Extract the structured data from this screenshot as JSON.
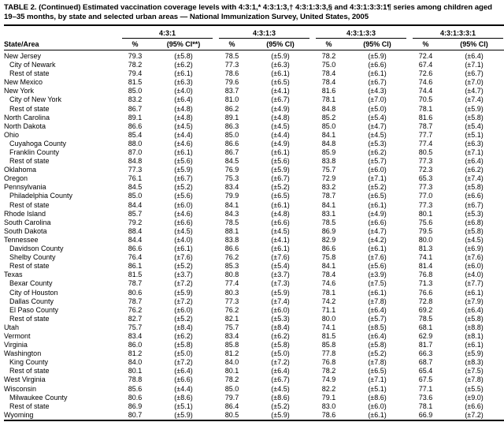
{
  "title": "TABLE 2. (Continued) Estimated vaccination coverage levels with 4:3:1,* 4:3:1:3,† 4:3:1:3:3,§ and 4:3:1:3:3:1¶ series among children aged 19–35 months, by state and selected urban areas — National Immunization Survey, United States, 2005",
  "header": {
    "state_col": "State/Area",
    "groups": [
      {
        "label": "4:3:1",
        "pct": "%",
        "ci": "(95% CI**)"
      },
      {
        "label": "4:3:1:3",
        "pct": "%",
        "ci": "(95% CI)"
      },
      {
        "label": "4:3:1:3:3",
        "pct": "%",
        "ci": "(95% CI)"
      },
      {
        "label": "4:3:1:3:3:1",
        "pct": "%",
        "ci": "(95% CI)"
      }
    ]
  },
  "rows": [
    {
      "area": "New Jersey",
      "indent": false,
      "values": [
        "79.3",
        "(±5.8)",
        "78.5",
        "(±5.9)",
        "78.2",
        "(±5.9)",
        "72.4",
        "(±6.4)"
      ]
    },
    {
      "area": "City of Newark",
      "indent": true,
      "values": [
        "78.2",
        "(±6.2)",
        "77.3",
        "(±6.3)",
        "75.0",
        "(±6.6)",
        "67.4",
        "(±7.1)"
      ]
    },
    {
      "area": "Rest of state",
      "indent": true,
      "values": [
        "79.4",
        "(±6.1)",
        "78.6",
        "(±6.1)",
        "78.4",
        "(±6.1)",
        "72.6",
        "(±6.7)"
      ]
    },
    {
      "area": "New Mexico",
      "indent": false,
      "values": [
        "81.5",
        "(±6.3)",
        "79.6",
        "(±6.5)",
        "78.4",
        "(±6.7)",
        "74.6",
        "(±7.0)"
      ]
    },
    {
      "area": "New York",
      "indent": false,
      "values": [
        "85.0",
        "(±4.0)",
        "83.7",
        "(±4.1)",
        "81.6",
        "(±4.3)",
        "74.4",
        "(±4.7)"
      ]
    },
    {
      "area": "City of New York",
      "indent": true,
      "values": [
        "83.2",
        "(±6.4)",
        "81.0",
        "(±6.7)",
        "78.1",
        "(±7.0)",
        "70.5",
        "(±7.4)"
      ]
    },
    {
      "area": "Rest of state",
      "indent": true,
      "values": [
        "86.7",
        "(±4.8)",
        "86.2",
        "(±4.9)",
        "84.8",
        "(±5.0)",
        "78.1",
        "(±5.9)"
      ]
    },
    {
      "area": "North Carolina",
      "indent": false,
      "values": [
        "89.1",
        "(±4.8)",
        "89.1",
        "(±4.8)",
        "85.2",
        "(±5.4)",
        "81.6",
        "(±5.8)"
      ]
    },
    {
      "area": "North Dakota",
      "indent": false,
      "values": [
        "86.6",
        "(±4.5)",
        "86.3",
        "(±4.5)",
        "85.0",
        "(±4.7)",
        "78.7",
        "(±5.4)"
      ]
    },
    {
      "area": "Ohio",
      "indent": false,
      "values": [
        "85.4",
        "(±4.4)",
        "85.0",
        "(±4.4)",
        "84.1",
        "(±4.5)",
        "77.7",
        "(±5.1)"
      ]
    },
    {
      "area": "Cuyahoga County",
      "indent": true,
      "values": [
        "88.0",
        "(±4.6)",
        "86.6",
        "(±4.9)",
        "84.8",
        "(±5.3)",
        "77.4",
        "(±6.3)"
      ]
    },
    {
      "area": "Franklin County",
      "indent": true,
      "values": [
        "87.0",
        "(±6.1)",
        "86.7",
        "(±6.1)",
        "85.9",
        "(±6.2)",
        "80.5",
        "(±7.1)"
      ]
    },
    {
      "area": "Rest of state",
      "indent": true,
      "values": [
        "84.8",
        "(±5.6)",
        "84.5",
        "(±5.6)",
        "83.8",
        "(±5.7)",
        "77.3",
        "(±6.4)"
      ]
    },
    {
      "area": "Oklahoma",
      "indent": false,
      "values": [
        "77.3",
        "(±5.9)",
        "76.9",
        "(±5.9)",
        "75.7",
        "(±6.0)",
        "72.3",
        "(±6.2)"
      ]
    },
    {
      "area": "Oregon",
      "indent": false,
      "values": [
        "76.1",
        "(±6.7)",
        "75.3",
        "(±6.7)",
        "72.9",
        "(±7.1)",
        "65.3",
        "(±7.4)"
      ]
    },
    {
      "area": "Pennsylvania",
      "indent": false,
      "values": [
        "84.5",
        "(±5.2)",
        "83.4",
        "(±5.2)",
        "83.2",
        "(±5.2)",
        "77.3",
        "(±5.8)"
      ]
    },
    {
      "area": "Philadelphia County",
      "indent": true,
      "values": [
        "85.0",
        "(±5.6)",
        "79.9",
        "(±6.5)",
        "78.7",
        "(±6.5)",
        "77.0",
        "(±6.6)"
      ]
    },
    {
      "area": "Rest of state",
      "indent": true,
      "values": [
        "84.4",
        "(±6.0)",
        "84.1",
        "(±6.1)",
        "84.1",
        "(±6.1)",
        "77.3",
        "(±6.7)"
      ]
    },
    {
      "area": "Rhode Island",
      "indent": false,
      "values": [
        "85.7",
        "(±4.6)",
        "84.3",
        "(±4.8)",
        "83.1",
        "(±4.9)",
        "80.1",
        "(±5.3)"
      ]
    },
    {
      "area": "South Carolina",
      "indent": false,
      "values": [
        "79.2",
        "(±6.6)",
        "78.5",
        "(±6.6)",
        "78.5",
        "(±6.6)",
        "75.6",
        "(±6.8)"
      ]
    },
    {
      "area": "South Dakota",
      "indent": false,
      "values": [
        "88.4",
        "(±4.5)",
        "88.1",
        "(±4.5)",
        "86.9",
        "(±4.7)",
        "79.5",
        "(±5.8)"
      ]
    },
    {
      "area": "Tennessee",
      "indent": false,
      "values": [
        "84.4",
        "(±4.0)",
        "83.8",
        "(±4.1)",
        "82.9",
        "(±4.2)",
        "80.0",
        "(±4.5)"
      ]
    },
    {
      "area": "Davidson County",
      "indent": true,
      "values": [
        "86.6",
        "(±6.1)",
        "86.6",
        "(±6.1)",
        "86.6",
        "(±6.1)",
        "81.3",
        "(±6.9)"
      ]
    },
    {
      "area": "Shelby County",
      "indent": true,
      "values": [
        "76.4",
        "(±7.6)",
        "76.2",
        "(±7.6)",
        "75.8",
        "(±7.6)",
        "74.1",
        "(±7.6)"
      ]
    },
    {
      "area": "Rest of state",
      "indent": true,
      "values": [
        "86.1",
        "(±5.2)",
        "85.3",
        "(±5.4)",
        "84.1",
        "(±5.6)",
        "81.4",
        "(±6.0)"
      ]
    },
    {
      "area": "Texas",
      "indent": false,
      "values": [
        "81.5",
        "(±3.7)",
        "80.8",
        "(±3.7)",
        "78.4",
        "(±3.9)",
        "76.8",
        "(±4.0)"
      ]
    },
    {
      "area": "Bexar County",
      "indent": true,
      "values": [
        "78.7",
        "(±7.2)",
        "77.4",
        "(±7.3)",
        "74.6",
        "(±7.5)",
        "71.3",
        "(±7.7)"
      ]
    },
    {
      "area": "City of Houston",
      "indent": true,
      "values": [
        "80.6",
        "(±5.9)",
        "80.3",
        "(±5.9)",
        "78.1",
        "(±6.1)",
        "76.6",
        "(±6.1)"
      ]
    },
    {
      "area": "Dallas County",
      "indent": true,
      "values": [
        "78.7",
        "(±7.2)",
        "77.3",
        "(±7.4)",
        "74.2",
        "(±7.8)",
        "72.8",
        "(±7.9)"
      ]
    },
    {
      "area": "El Paso County",
      "indent": true,
      "values": [
        "76.2",
        "(±6.0)",
        "76.2",
        "(±6.0)",
        "71.1",
        "(±6.4)",
        "69.2",
        "(±6.4)"
      ]
    },
    {
      "area": "Rest of state",
      "indent": true,
      "values": [
        "82.7",
        "(±5.2)",
        "82.1",
        "(±5.3)",
        "80.0",
        "(±5.7)",
        "78.5",
        "(±5.8)"
      ]
    },
    {
      "area": "Utah",
      "indent": false,
      "values": [
        "75.7",
        "(±8.4)",
        "75.7",
        "(±8.4)",
        "74.1",
        "(±8.5)",
        "68.1",
        "(±8.8)"
      ]
    },
    {
      "area": "Vermont",
      "indent": false,
      "values": [
        "83.4",
        "(±6.2)",
        "83.4",
        "(±6.2)",
        "81.5",
        "(±6.4)",
        "62.9",
        "(±8.1)"
      ]
    },
    {
      "area": "Virginia",
      "indent": false,
      "values": [
        "86.0",
        "(±5.8)",
        "85.8",
        "(±5.8)",
        "85.8",
        "(±5.8)",
        "81.7",
        "(±6.1)"
      ]
    },
    {
      "area": "Washington",
      "indent": false,
      "values": [
        "81.2",
        "(±5.0)",
        "81.2",
        "(±5.0)",
        "77.8",
        "(±5.2)",
        "66.3",
        "(±5.9)"
      ]
    },
    {
      "area": "King County",
      "indent": true,
      "values": [
        "84.0",
        "(±7.2)",
        "84.0",
        "(±7.2)",
        "76.8",
        "(±7.8)",
        "68.7",
        "(±8.3)"
      ]
    },
    {
      "area": "Rest of state",
      "indent": true,
      "values": [
        "80.1",
        "(±6.4)",
        "80.1",
        "(±6.4)",
        "78.2",
        "(±6.5)",
        "65.4",
        "(±7.5)"
      ]
    },
    {
      "area": "West Virginia",
      "indent": false,
      "values": [
        "78.8",
        "(±6.6)",
        "78.2",
        "(±6.7)",
        "74.9",
        "(±7.1)",
        "67.5",
        "(±7.8)"
      ]
    },
    {
      "area": "Wisconsin",
      "indent": false,
      "values": [
        "85.6",
        "(±4.4)",
        "85.0",
        "(±4.5)",
        "82.2",
        "(±5.1)",
        "77.1",
        "(±5.5)"
      ]
    },
    {
      "area": "Milwaukee County",
      "indent": true,
      "values": [
        "80.6",
        "(±8.6)",
        "79.7",
        "(±8.6)",
        "79.1",
        "(±8.6)",
        "73.6",
        "(±9.0)"
      ]
    },
    {
      "area": "Rest of state",
      "indent": true,
      "values": [
        "86.9",
        "(±5.1)",
        "86.4",
        "(±5.2)",
        "83.0",
        "(±6.0)",
        "78.1",
        "(±6.6)"
      ]
    },
    {
      "area": "Wyoming",
      "indent": false,
      "values": [
        "80.7",
        "(±5.9)",
        "80.5",
        "(±5.9)",
        "78.6",
        "(±6.1)",
        "66.9",
        "(±7.2)"
      ]
    }
  ]
}
